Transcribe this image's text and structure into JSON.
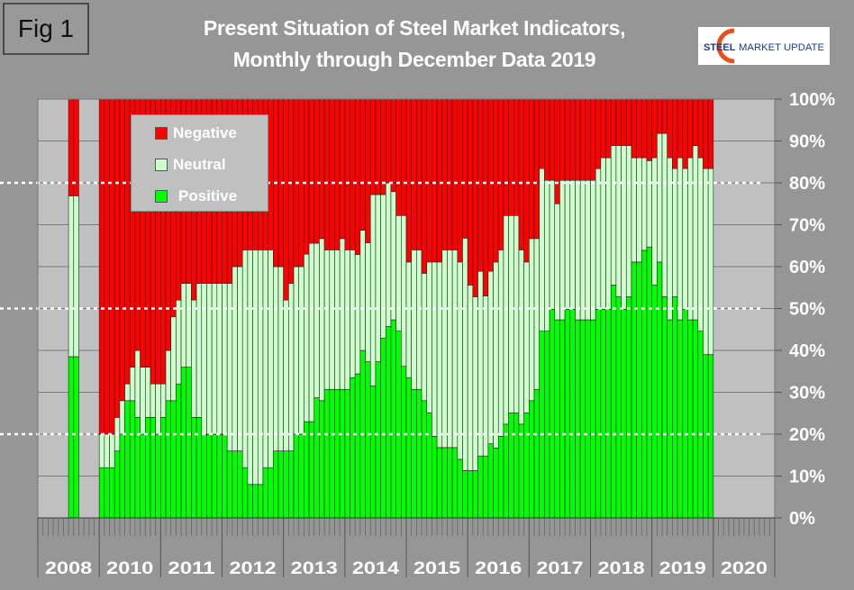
{
  "figure_label": "Fig 1",
  "logo": {
    "text_a": "STEEL",
    "text_b": "MARKET UPDATE"
  },
  "chart_data": {
    "type": "bar",
    "stacked": true,
    "normalized": true,
    "title": "Present Situation of Steel Market Indicators,",
    "subtitle": "Monthly through December Data 2019",
    "xlabel": "",
    "ylabel": "",
    "ylim": [
      0,
      100
    ],
    "yticks": [
      "0%",
      "10%",
      "20%",
      "30%",
      "40%",
      "50%",
      "60%",
      "70%",
      "80%",
      "90%",
      "100%"
    ],
    "year_labels": [
      "2008",
      "2010",
      "2011",
      "2012",
      "2013",
      "2014",
      "2015",
      "2016",
      "2017",
      "2018",
      "2019",
      "2020"
    ],
    "grid": true,
    "reference_lines": [
      20,
      50,
      80
    ],
    "legend": {
      "placement": "top-left",
      "entries": [
        "Negative",
        "Neutral",
        "Positive"
      ]
    },
    "colors": {
      "Positive": "#00ff00",
      "Neutral": "#ccffcc",
      "Negative": "#ff0000",
      "plot_bg": "#c0c0c0"
    },
    "groups": [
      {
        "year": "2008",
        "slot_start": 6,
        "Positive": [
          38.5,
          38.5
        ],
        "Neutral": [
          38.4,
          38.4
        ],
        "Negative": [
          23.1,
          23.1
        ]
      },
      {
        "year": "2010",
        "slot_start": 0,
        "Positive": [
          12,
          12,
          12,
          16,
          20,
          28,
          28,
          24,
          20,
          24,
          24,
          20
        ],
        "Neutral": [
          8,
          8,
          8,
          8,
          8,
          4,
          8,
          16,
          16,
          12,
          8,
          12
        ],
        "Negative": [
          80,
          80,
          80,
          76,
          72,
          68,
          64,
          60,
          64,
          64,
          68,
          68
        ]
      },
      {
        "year": "2011",
        "slot_start": 0,
        "Positive": [
          24,
          28,
          28,
          32,
          36,
          36,
          24,
          24,
          20,
          20,
          20,
          20
        ],
        "Neutral": [
          8,
          12,
          20,
          20,
          20,
          20,
          28,
          32,
          36,
          36,
          36,
          36
        ],
        "Negative": [
          68,
          60,
          52,
          48,
          44,
          44,
          48,
          44,
          44,
          44,
          44,
          44
        ]
      },
      {
        "year": "2012",
        "slot_start": 0,
        "Positive": [
          20,
          16,
          16,
          16,
          12,
          8,
          8,
          8,
          12,
          12,
          16,
          16
        ],
        "Neutral": [
          36,
          40,
          44,
          44,
          52,
          56,
          56,
          56,
          52,
          52,
          44,
          44
        ],
        "Negative": [
          44,
          44,
          40,
          40,
          36,
          36,
          36,
          36,
          36,
          36,
          40,
          40
        ]
      },
      {
        "year": "2013",
        "slot_start": 0,
        "Positive": [
          16,
          16,
          20,
          20,
          23,
          23,
          28.7,
          28,
          30.7,
          30.7,
          30.7,
          30.7
        ],
        "Neutral": [
          36,
          40,
          40,
          40,
          40,
          42.6,
          36.9,
          38.7,
          33.3,
          33.3,
          33.3,
          36
        ],
        "Negative": [
          48,
          44,
          40,
          40,
          37,
          34.4,
          34.4,
          33.3,
          36,
          36,
          36,
          33.3
        ]
      },
      {
        "year": "2014",
        "slot_start": 0,
        "Positive": [
          30.7,
          33.5,
          34.4,
          40,
          37.3,
          31.5,
          37.3,
          42.9,
          45.7,
          47.3,
          44.6,
          36.2
        ],
        "Neutral": [
          33.3,
          30.5,
          28.5,
          28.7,
          28.4,
          45.7,
          39.9,
          34.3,
          34.3,
          30.6,
          27.6,
          36
        ],
        "Negative": [
          36,
          36,
          37.1,
          31.3,
          34.3,
          22.8,
          22.8,
          22.8,
          20,
          22.1,
          27.8,
          27.8
        ]
      },
      {
        "year": "2015",
        "slot_start": 0,
        "Positive": [
          33.5,
          30.7,
          30.7,
          28,
          25.1,
          19.5,
          16.8,
          16.8,
          16.8,
          16.8,
          14,
          11.3
        ],
        "Neutral": [
          27.6,
          33.3,
          33.3,
          30.4,
          36,
          41.6,
          44.3,
          47.2,
          47.2,
          47.2,
          47.1,
          55.5
        ],
        "Negative": [
          38.9,
          36,
          36,
          41.6,
          38.9,
          38.9,
          38.9,
          36,
          36,
          36,
          38.9,
          33.2
        ]
      },
      {
        "year": "2016",
        "slot_start": 0,
        "Positive": [
          11.3,
          11.3,
          14.8,
          14.8,
          17.7,
          16.7,
          19.5,
          22.4,
          25.1,
          25.1,
          22.4,
          25.1
        ],
        "Neutral": [
          44.3,
          41.5,
          44.1,
          38.2,
          41.2,
          44.4,
          44.5,
          49.8,
          47.1,
          47.1,
          41.6,
          36
        ],
        "Negative": [
          44.4,
          47.2,
          41.1,
          47,
          41.1,
          38.9,
          36,
          27.8,
          27.8,
          27.8,
          36,
          38.9
        ]
      },
      {
        "year": "2017",
        "slot_start": 0,
        "Positive": [
          28,
          30.7,
          44.6,
          44.6,
          49.8,
          47.3,
          47.3,
          49.8,
          49.8,
          47.3,
          47.3,
          47.3
        ],
        "Neutral": [
          38.7,
          36,
          38.8,
          36,
          30.8,
          27.7,
          33.3,
          30.8,
          30.8,
          33.3,
          33.3,
          33.3
        ],
        "Negative": [
          33.3,
          33.3,
          16.6,
          19.4,
          19.4,
          25,
          19.4,
          19.4,
          19.4,
          19.4,
          19.4,
          19.4
        ]
      },
      {
        "year": "2018",
        "slot_start": 0,
        "Positive": [
          47.3,
          49.8,
          49.8,
          49.8,
          55.6,
          52.8,
          49.8,
          52.8,
          61.1,
          61.1,
          63.9,
          64.7
        ],
        "Neutral": [
          33.3,
          33.6,
          36.2,
          36.2,
          33.3,
          36.1,
          39.1,
          36.1,
          24.9,
          24.9,
          22.1,
          20.6
        ],
        "Negative": [
          19.4,
          16.6,
          14,
          14,
          11.1,
          11.1,
          11.1,
          11.1,
          14,
          14,
          14,
          14.7
        ]
      },
      {
        "year": "2019",
        "slot_start": 0,
        "Positive": [
          55.6,
          61.1,
          52.8,
          47.3,
          52.8,
          47.3,
          49.8,
          47.3,
          47.3,
          44.6,
          39,
          39
        ],
        "Neutral": [
          30.4,
          30.7,
          39,
          38.7,
          30.6,
          38.7,
          33.6,
          38.7,
          41.6,
          41.4,
          44.4,
          44.4
        ],
        "Negative": [
          14,
          8.2,
          8.2,
          14,
          16.6,
          14,
          16.6,
          14,
          11.1,
          14,
          16.6,
          16.6
        ]
      },
      {
        "year": "2020",
        "slot_start": 0,
        "Positive": [],
        "Neutral": [],
        "Negative": []
      }
    ]
  }
}
